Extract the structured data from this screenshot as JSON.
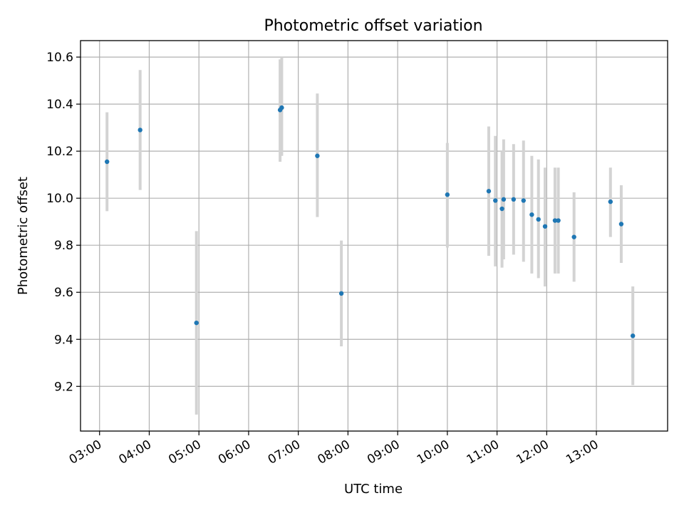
{
  "chart_data": {
    "type": "scatter",
    "title": "Photometric offset variation",
    "xlabel": "UTC time",
    "ylabel": "Photometric offset",
    "grid": true,
    "x_ticks": [
      "03:00",
      "04:00",
      "05:00",
      "06:00",
      "07:00",
      "08:00",
      "09:00",
      "10:00",
      "11:00",
      "12:00",
      "13:00"
    ],
    "y_ticks": [
      "9.2",
      "9.4",
      "9.6",
      "9.8",
      "10.0",
      "10.2",
      "10.4",
      "10.6"
    ],
    "xlim": [
      "02:37",
      "14:26"
    ],
    "ylim": [
      9.01,
      10.67
    ],
    "colors": {
      "point": "#1f77b4",
      "errorbar": "#d3d3d3",
      "grid": "#b0b0b0"
    },
    "points": [
      {
        "x": "03:09",
        "y": 10.155,
        "ylow": 9.945,
        "yhigh": 10.365
      },
      {
        "x": "03:49",
        "y": 10.29,
        "ylow": 10.035,
        "yhigh": 10.545
      },
      {
        "x": "04:57",
        "y": 9.47,
        "ylow": 9.08,
        "yhigh": 9.86
      },
      {
        "x": "06:38",
        "y": 10.375,
        "ylow": 10.155,
        "yhigh": 10.59
      },
      {
        "x": "06:40",
        "y": 10.385,
        "ylow": 10.18,
        "yhigh": 10.6
      },
      {
        "x": "07:23",
        "y": 10.18,
        "ylow": 9.92,
        "yhigh": 10.445
      },
      {
        "x": "07:52",
        "y": 9.595,
        "ylow": 9.37,
        "yhigh": 9.82
      },
      {
        "x": "10:00",
        "y": 10.015,
        "ylow": 9.79,
        "yhigh": 10.235
      },
      {
        "x": "10:50",
        "y": 10.03,
        "ylow": 9.755,
        "yhigh": 10.305
      },
      {
        "x": "10:58",
        "y": 9.99,
        "ylow": 9.71,
        "yhigh": 10.265
      },
      {
        "x": "11:06",
        "y": 9.955,
        "ylow": 9.705,
        "yhigh": 10.2
      },
      {
        "x": "11:08",
        "y": 9.995,
        "ylow": 9.74,
        "yhigh": 10.25
      },
      {
        "x": "11:20",
        "y": 9.995,
        "ylow": 9.76,
        "yhigh": 10.23
      },
      {
        "x": "11:32",
        "y": 9.99,
        "ylow": 9.73,
        "yhigh": 10.245
      },
      {
        "x": "11:42",
        "y": 9.93,
        "ylow": 9.68,
        "yhigh": 10.18
      },
      {
        "x": "11:50",
        "y": 9.91,
        "ylow": 9.66,
        "yhigh": 10.165
      },
      {
        "x": "11:58",
        "y": 9.88,
        "ylow": 9.625,
        "yhigh": 10.13
      },
      {
        "x": "12:10",
        "y": 9.905,
        "ylow": 9.68,
        "yhigh": 10.13
      },
      {
        "x": "12:14",
        "y": 9.905,
        "ylow": 9.68,
        "yhigh": 10.13
      },
      {
        "x": "12:33",
        "y": 9.835,
        "ylow": 9.645,
        "yhigh": 10.025
      },
      {
        "x": "13:17",
        "y": 9.985,
        "ylow": 9.835,
        "yhigh": 10.13
      },
      {
        "x": "13:30",
        "y": 9.89,
        "ylow": 9.725,
        "yhigh": 10.055
      },
      {
        "x": "13:44",
        "y": 9.415,
        "ylow": 9.205,
        "yhigh": 9.625
      }
    ]
  }
}
